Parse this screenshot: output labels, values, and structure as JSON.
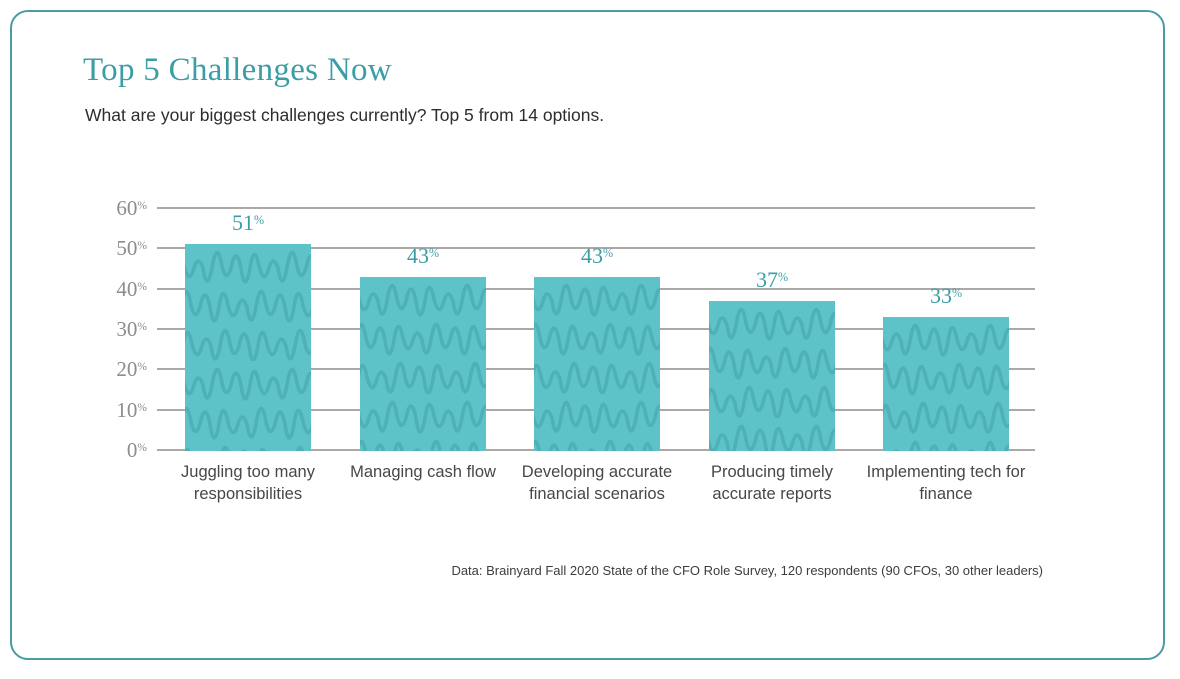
{
  "card": {
    "title": "Top 5 Challenges Now",
    "subtitle": "What are your biggest challenges currently? Top 5 from 14 options.",
    "source": "Data: Brainyard Fall 2020 State of the CFO Role Survey, 120 respondents (90 CFOs, 30 other leaders)"
  },
  "chart_data": {
    "type": "bar",
    "title": "Top 5 Challenges Now",
    "subtitle": "What are your biggest challenges currently? Top 5 from 14 options.",
    "categories": [
      "Juggling too many responsibilities",
      "Managing cash flow",
      "Developing accurate financial scenarios",
      "Producing timely accurate reports",
      "Implementing tech for finance"
    ],
    "values": [
      51,
      43,
      43,
      37,
      33
    ],
    "data_labels": [
      "51",
      "43",
      "43",
      "37",
      "33"
    ],
    "unit": "%",
    "xlabel": "",
    "ylabel": "",
    "ylim": [
      0,
      60
    ],
    "yticks": [
      0,
      10,
      20,
      30,
      40,
      50,
      60
    ],
    "grid": "horizontal",
    "legend": "none",
    "bar_texture": "hand-drawn squiggle rows",
    "source": "Data: Brainyard Fall 2020 State of the CFO Role Survey, 120 respondents (90 CFOs, 30 other leaders)"
  },
  "colors": {
    "accent": "#3b9da6",
    "border": "#4a9ba4",
    "bar": "#5ec3c8",
    "squig": "#2e8a92",
    "grid": "#aba9a7",
    "axis": "#8e8c8a",
    "cat": "#474745"
  }
}
